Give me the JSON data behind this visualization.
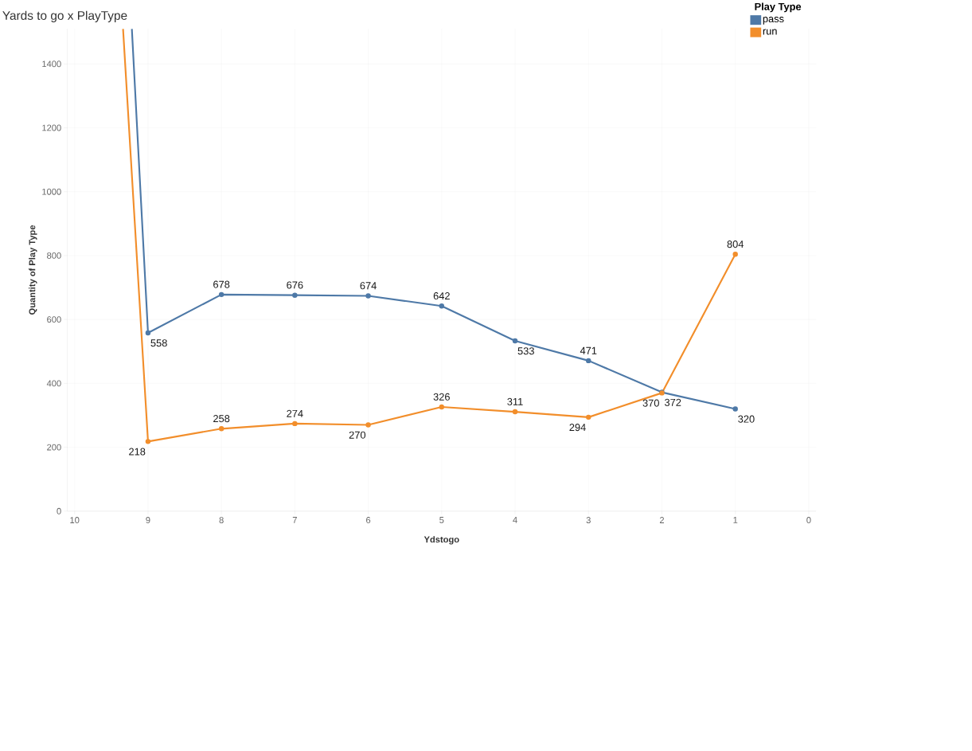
{
  "chart_data": {
    "type": "line",
    "title": "Yards to go x PlayType",
    "xlabel": "Ydstogo",
    "ylabel": "Quantity of Play Type",
    "legend_title": "Play Type",
    "series": [
      {
        "name": "pass",
        "color": "#4e79a7",
        "x": [
          9.22,
          9,
          8,
          7,
          6,
          5,
          4,
          3,
          2,
          1
        ],
        "values": [
          1510,
          558,
          678,
          676,
          674,
          642,
          533,
          471,
          372,
          320
        ],
        "value_labels": [
          null,
          "558",
          "678",
          "676",
          "674",
          "642",
          "533",
          "471",
          "372",
          "320"
        ]
      },
      {
        "name": "run",
        "color": "#f28e2b",
        "x": [
          9.34,
          9,
          8,
          7,
          6,
          5,
          4,
          3,
          2,
          1
        ],
        "values": [
          1510,
          218,
          258,
          274,
          270,
          326,
          311,
          294,
          370,
          804
        ],
        "value_labels": [
          null,
          "218",
          "258",
          "274",
          "270",
          "326",
          "311",
          "294",
          "370",
          "804"
        ]
      }
    ],
    "xlim": [
      10.1,
      -0.1
    ],
    "ylim": [
      0,
      1510
    ],
    "xticks": [
      10,
      9,
      8,
      7,
      6,
      5,
      4,
      3,
      2,
      1,
      0
    ],
    "yticks": [
      0,
      200,
      400,
      600,
      800,
      1000,
      1200,
      1400
    ],
    "grid": true,
    "legend": "top right",
    "marker": "circle",
    "line_style": "solid"
  }
}
